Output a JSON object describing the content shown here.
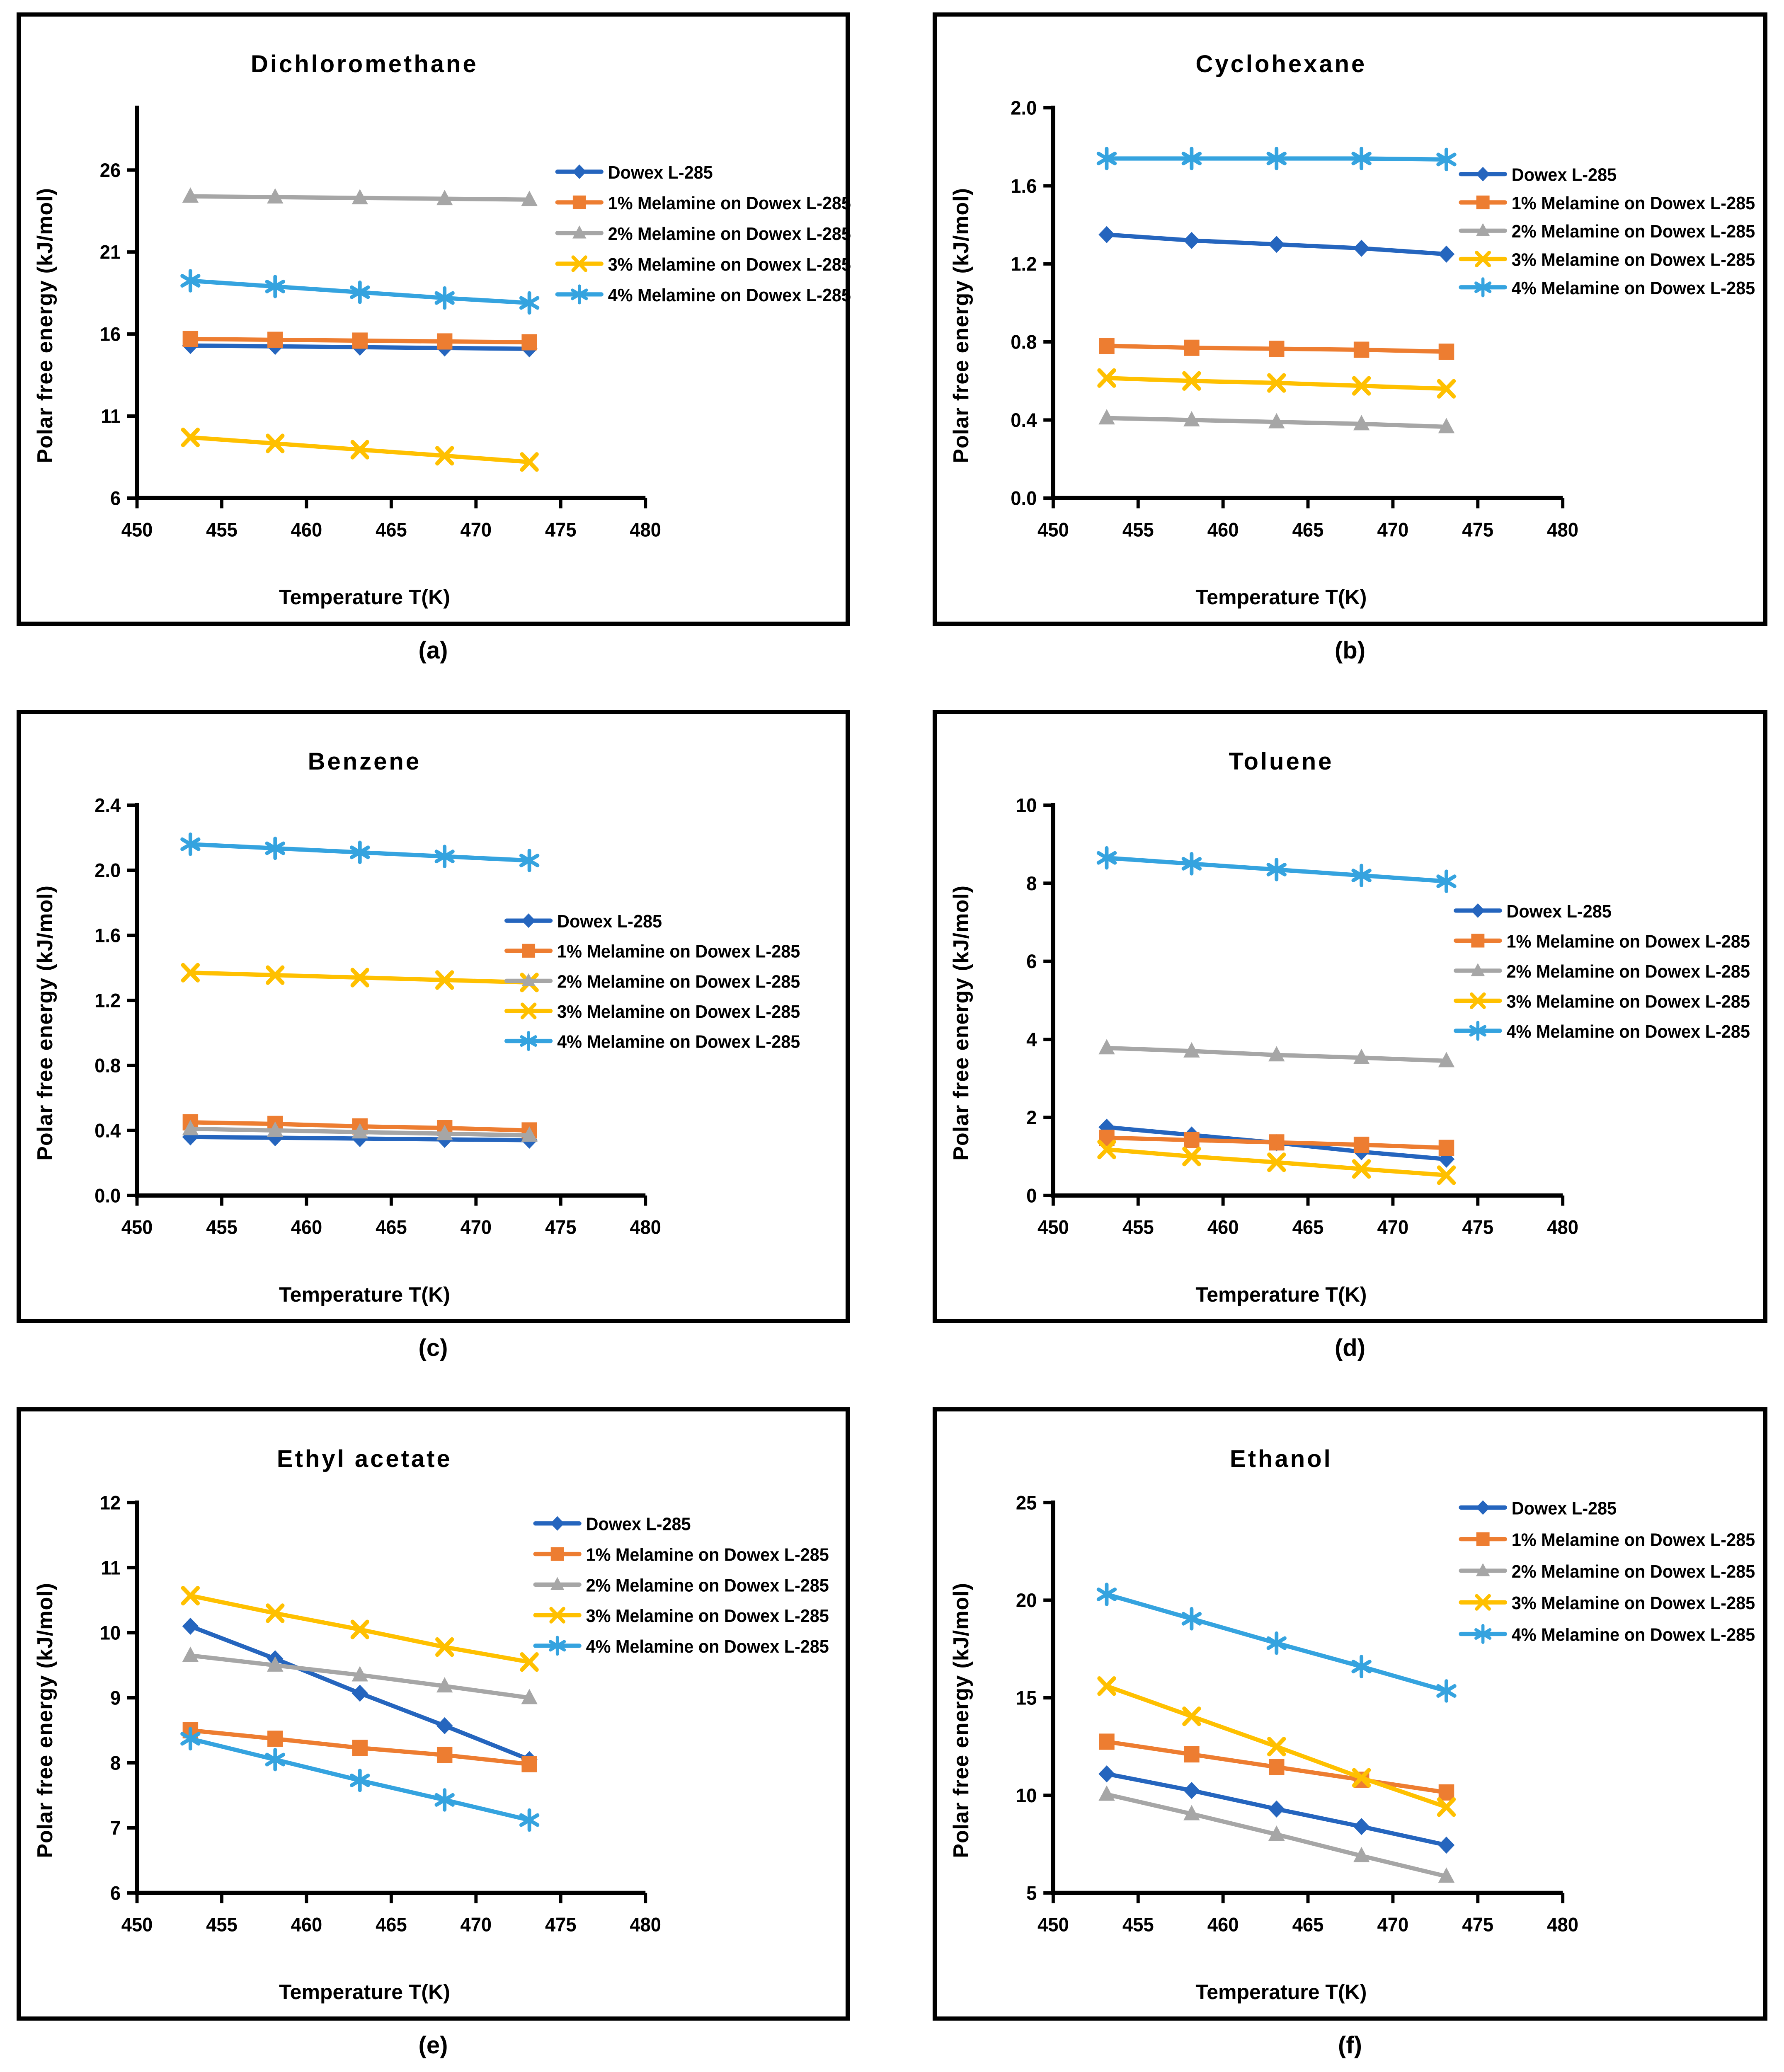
{
  "labels": {
    "x": "Temperature T(K)",
    "y": "Polar free energy (kJ/mol)"
  },
  "series_styles": [
    {
      "color": "#2565BE",
      "marker": "diamond"
    },
    {
      "color": "#ED7D31",
      "marker": "square"
    },
    {
      "color": "#A6A6A6",
      "marker": "triangle"
    },
    {
      "color": "#FFC000",
      "marker": "x"
    },
    {
      "color": "#35A3DF",
      "marker": "asterisk"
    }
  ],
  "chart_data": [
    {
      "type": "line",
      "title": "Dichloromethane",
      "caption": "(a)",
      "xlabel": "Temperature T(K)",
      "ylabel": "Polar free energy (kJ/mol)",
      "x": [
        453.15,
        458.15,
        463.15,
        468.15,
        473.15
      ],
      "xlim": [
        450,
        480
      ],
      "xticks": [
        450,
        455,
        460,
        465,
        470,
        475,
        480
      ],
      "ylim": [
        6,
        29.8
      ],
      "yticks": [
        6,
        11,
        16,
        21,
        26
      ],
      "ydecimals": 0,
      "legend": {
        "x_val": 474.8,
        "y_val": 25.9,
        "dy_val": 1.87
      },
      "series": [
        {
          "name": "Dowex L-285",
          "values": [
            15.3,
            15.25,
            15.2,
            15.15,
            15.1
          ]
        },
        {
          "name": "1% Melamine on Dowex L-285",
          "values": [
            15.7,
            15.65,
            15.6,
            15.55,
            15.5
          ]
        },
        {
          "name": "2% Melamine on Dowex L-285",
          "values": [
            24.4,
            24.35,
            24.3,
            24.25,
            24.2
          ]
        },
        {
          "name": "3% Melamine on Dowex L-285",
          "values": [
            9.7,
            9.33,
            8.95,
            8.58,
            8.2
          ]
        },
        {
          "name": "4% Melamine on Dowex L-285",
          "values": [
            19.25,
            18.9,
            18.55,
            18.2,
            17.9
          ]
        }
      ]
    },
    {
      "type": "line",
      "title": "Cyclohexane",
      "caption": "(b)",
      "xlabel": "Temperature T(K)",
      "ylabel": "Polar free energy (kJ/mol)",
      "x": [
        453.15,
        458.15,
        463.15,
        468.15,
        473.15
      ],
      "xlim": [
        450,
        480
      ],
      "xticks": [
        450,
        455,
        460,
        465,
        470,
        475,
        480
      ],
      "ylim": [
        0,
        2.0
      ],
      "yticks": [
        0,
        0.4,
        0.8,
        1.2,
        1.6,
        2.0
      ],
      "ydecimals": 1,
      "legend": {
        "x_val": 474.0,
        "y_val": 1.66,
        "dy_val": 0.145
      },
      "series": [
        {
          "name": "Dowex L-285",
          "values": [
            1.35,
            1.32,
            1.3,
            1.28,
            1.25
          ]
        },
        {
          "name": "1% Melamine on Dowex L-285",
          "values": [
            0.78,
            0.77,
            0.765,
            0.76,
            0.75
          ]
        },
        {
          "name": "2% Melamine on Dowex L-285",
          "values": [
            0.41,
            0.4,
            0.39,
            0.38,
            0.365
          ]
        },
        {
          "name": "3% Melamine on Dowex L-285",
          "values": [
            0.615,
            0.6,
            0.59,
            0.575,
            0.56
          ]
        },
        {
          "name": "4% Melamine on Dowex L-285",
          "values": [
            1.74,
            1.74,
            1.74,
            1.74,
            1.735
          ]
        }
      ]
    },
    {
      "type": "line",
      "title": "Benzene",
      "caption": "(c)",
      "xlabel": "Temperature T(K)",
      "ylabel": "Polar free energy (kJ/mol)",
      "x": [
        453.15,
        458.15,
        463.15,
        468.15,
        473.15
      ],
      "xlim": [
        450,
        480
      ],
      "xticks": [
        450,
        455,
        460,
        465,
        470,
        475,
        480
      ],
      "ylim": [
        0,
        2.4
      ],
      "yticks": [
        0,
        0.4,
        0.8,
        1.2,
        1.6,
        2.0,
        2.4
      ],
      "ydecimals": 1,
      "legend": {
        "x_val": 471.8,
        "y_val": 1.69,
        "dy_val": 0.185
      },
      "series": [
        {
          "name": "Dowex L-285",
          "values": [
            0.36,
            0.355,
            0.35,
            0.345,
            0.34
          ]
        },
        {
          "name": "1% Melamine on Dowex L-285",
          "values": [
            0.45,
            0.44,
            0.425,
            0.415,
            0.4
          ]
        },
        {
          "name": "2% Melamine on Dowex L-285",
          "values": [
            0.41,
            0.4,
            0.39,
            0.38,
            0.37
          ]
        },
        {
          "name": "3% Melamine on Dowex L-285",
          "values": [
            1.37,
            1.355,
            1.34,
            1.325,
            1.31
          ]
        },
        {
          "name": "4% Melamine on Dowex L-285",
          "values": [
            2.16,
            2.135,
            2.11,
            2.085,
            2.06
          ]
        }
      ]
    },
    {
      "type": "line",
      "title": "Toluene",
      "caption": "(d)",
      "xlabel": "Temperature T(K)",
      "ylabel": "Polar free energy (kJ/mol)",
      "x": [
        453.15,
        458.15,
        463.15,
        468.15,
        473.15
      ],
      "xlim": [
        450,
        480
      ],
      "xticks": [
        450,
        455,
        460,
        465,
        470,
        475,
        480
      ],
      "ylim": [
        0,
        10
      ],
      "yticks": [
        0,
        2,
        4,
        6,
        8,
        10
      ],
      "ydecimals": 0,
      "legend": {
        "x_val": 473.7,
        "y_val": 7.3,
        "dy_val": 0.77
      },
      "series": [
        {
          "name": "Dowex L-285",
          "values": [
            1.75,
            1.55,
            1.35,
            1.12,
            0.93
          ]
        },
        {
          "name": "1% Melamine on Dowex L-285",
          "values": [
            1.48,
            1.42,
            1.36,
            1.3,
            1.22
          ]
        },
        {
          "name": "2% Melamine on Dowex L-285",
          "values": [
            3.78,
            3.7,
            3.6,
            3.53,
            3.45
          ]
        },
        {
          "name": "3% Melamine on Dowex L-285",
          "values": [
            1.18,
            1.0,
            0.85,
            0.68,
            0.52
          ]
        },
        {
          "name": "4% Melamine on Dowex L-285",
          "values": [
            8.65,
            8.5,
            8.35,
            8.2,
            8.05
          ]
        }
      ]
    },
    {
      "type": "line",
      "title": "Ethyl acetate",
      "caption": "(e)",
      "xlabel": "Temperature T(K)",
      "ylabel": "Polar free energy (kJ/mol)",
      "x": [
        453.15,
        458.15,
        463.15,
        468.15,
        473.15
      ],
      "xlim": [
        450,
        480
      ],
      "xticks": [
        450,
        455,
        460,
        465,
        470,
        475,
        480
      ],
      "ylim": [
        6,
        12
      ],
      "yticks": [
        6,
        7,
        8,
        9,
        10,
        11,
        12
      ],
      "ydecimals": 0,
      "legend": {
        "x_val": 473.5,
        "y_val": 11.68,
        "dy_val": 0.47
      },
      "series": [
        {
          "name": "Dowex L-285",
          "values": [
            10.1,
            9.6,
            9.07,
            8.57,
            8.05
          ]
        },
        {
          "name": "1% Melamine on Dowex L-285",
          "values": [
            8.5,
            8.37,
            8.23,
            8.12,
            7.98
          ]
        },
        {
          "name": "2% Melamine on Dowex L-285",
          "values": [
            9.65,
            9.5,
            9.35,
            9.18,
            9.0
          ]
        },
        {
          "name": "3% Melamine on Dowex L-285",
          "values": [
            10.57,
            10.3,
            10.05,
            9.78,
            9.55
          ]
        },
        {
          "name": "4% Melamine on Dowex L-285",
          "values": [
            8.37,
            8.05,
            7.73,
            7.43,
            7.12
          ]
        }
      ]
    },
    {
      "type": "line",
      "title": "Ethanol",
      "caption": "(f)",
      "xlabel": "Temperature T(K)",
      "ylabel": "Polar free energy (kJ/mol)",
      "x": [
        453.15,
        458.15,
        463.15,
        468.15,
        473.15
      ],
      "xlim": [
        450,
        480
      ],
      "xticks": [
        450,
        455,
        460,
        465,
        470,
        475,
        480
      ],
      "ylim": [
        5,
        25
      ],
      "yticks": [
        5,
        10,
        15,
        20,
        25
      ],
      "ydecimals": 0,
      "legend": {
        "x_val": 474.0,
        "y_val": 24.75,
        "dy_val": 1.62
      },
      "series": [
        {
          "name": "Dowex L-285",
          "values": [
            11.1,
            10.25,
            9.3,
            8.4,
            7.45
          ]
        },
        {
          "name": "1% Melamine on Dowex L-285",
          "values": [
            12.75,
            12.1,
            11.45,
            10.8,
            10.15
          ]
        },
        {
          "name": "2% Melamine on Dowex L-285",
          "values": [
            10.05,
            9.05,
            8.0,
            6.9,
            5.85
          ]
        },
        {
          "name": "3% Melamine on Dowex L-285",
          "values": [
            15.6,
            14.05,
            12.5,
            10.9,
            9.4
          ]
        },
        {
          "name": "4% Melamine on Dowex L-285",
          "values": [
            20.3,
            19.05,
            17.8,
            16.6,
            15.35
          ]
        }
      ]
    }
  ]
}
